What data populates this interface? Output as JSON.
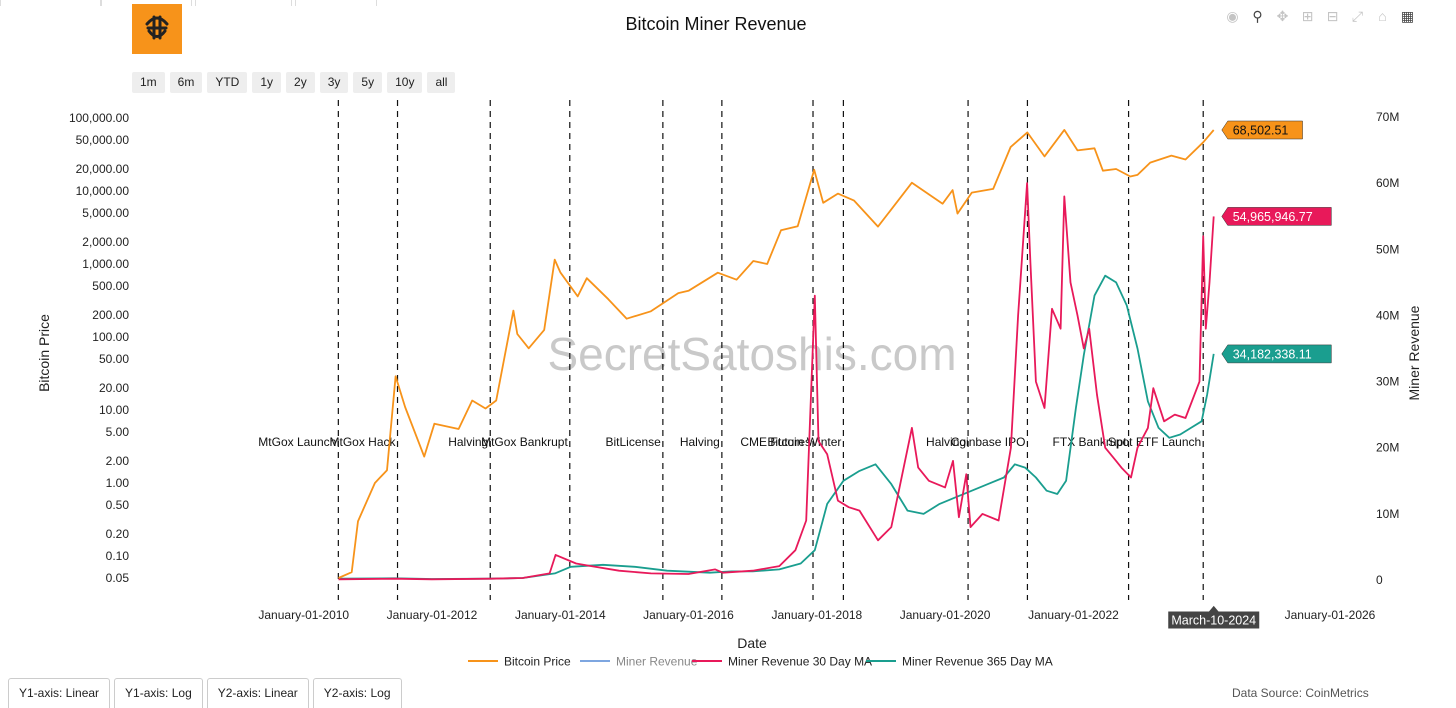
{
  "title": "Bitcoin Miner Revenue",
  "watermark": "SecretSatoshis.com",
  "data_source": "Data Source: CoinMetrics",
  "range_buttons": [
    "1m",
    "6m",
    "YTD",
    "1y",
    "2y",
    "3y",
    "5y",
    "10y",
    "all"
  ],
  "axis_buttons": [
    "Y1-axis: Linear",
    "Y1-axis: Log",
    "Y2-axis: Linear",
    "Y2-axis: Log"
  ],
  "modebar_icons": [
    "camera-icon",
    "zoom-icon",
    "pan-icon",
    "zoom-in-icon",
    "zoom-out-icon",
    "autoscale-icon",
    "reset-axes-icon",
    "plotly-logo-icon"
  ],
  "colors": {
    "price": "#f7931a",
    "revenue": "#7ea6e0",
    "ma30": "#e8195a",
    "ma365": "#1a9e8f"
  },
  "chart_data": {
    "type": "line",
    "xlabel": "Date",
    "ylabel": "Bitcoin Price",
    "y2label": "Miner Revenue",
    "xlim": [
      "2009-01-03",
      "2026-01-01"
    ],
    "x_ticks": [
      "January-01-2010",
      "January-01-2012",
      "January-01-2014",
      "January-01-2016",
      "January-01-2018",
      "January-01-2020",
      "January-01-2022",
      "January-01-2026"
    ],
    "y_scale": "log",
    "y_ticks": [
      "100,000.00",
      "50,000.00",
      "20,000.00",
      "10,000.00",
      "5,000.00",
      "2,000.00",
      "1,000.00",
      "500.00",
      "200.00",
      "100.00",
      "50.00",
      "20.00",
      "10.00",
      "5.00",
      "2.00",
      "1.00",
      "0.50",
      "0.20",
      "0.10",
      "0.05"
    ],
    "y2_ticks": [
      "70M",
      "60M",
      "50M",
      "40M",
      "30M",
      "20M",
      "10M",
      "0"
    ],
    "y2_range": [
      0,
      70000000
    ],
    "hover_date": "March-10-2024",
    "last_values": {
      "price": "68,502.51",
      "ma30": "54,965,946.77",
      "ma365": "34,182,338.11"
    },
    "events": [
      {
        "date": "2010-07-17",
        "label": "MtGox Launch"
      },
      {
        "date": "2011-06-19",
        "label": "MtGox Hack"
      },
      {
        "date": "2012-11-28",
        "label": "Halving"
      },
      {
        "date": "2014-02-24",
        "label": "MtGox Bankrupt"
      },
      {
        "date": "2015-08-08",
        "label": "BitLicense"
      },
      {
        "date": "2016-07-09",
        "label": "Halving"
      },
      {
        "date": "2017-12-10",
        "label": "CME Futures"
      },
      {
        "date": "2018-06-01",
        "label": "Bitcoin Winter"
      },
      {
        "date": "2020-05-11",
        "label": "Halving"
      },
      {
        "date": "2021-04-14",
        "label": "Coinbase IPO"
      },
      {
        "date": "2022-11-11",
        "label": "FTX Bankrupt"
      },
      {
        "date": "2024-01-10",
        "label": "Spot ETF Launch"
      }
    ],
    "series": [
      {
        "name": "Bitcoin Price",
        "axis": "y",
        "x": [
          "2010-07-18",
          "2010-10-01",
          "2010-11-06",
          "2011-02-10",
          "2011-04-20",
          "2011-06-08",
          "2011-08-01",
          "2011-11-18",
          "2012-01-15",
          "2012-06-01",
          "2012-08-17",
          "2012-11-01",
          "2013-01-01",
          "2013-04-09",
          "2013-05-01",
          "2013-07-05",
          "2013-10-01",
          "2013-11-30",
          "2014-01-01",
          "2014-04-10",
          "2014-06-01",
          "2014-10-01",
          "2015-01-14",
          "2015-06-01",
          "2015-11-04",
          "2016-01-01",
          "2016-06-16",
          "2016-10-01",
          "2017-01-04",
          "2017-03-24",
          "2017-06-11",
          "2017-09-14",
          "2017-12-17",
          "2018-02-06",
          "2018-05-01",
          "2018-08-01",
          "2018-12-15",
          "2019-06-26",
          "2019-12-18",
          "2020-02-13",
          "2020-03-12",
          "2020-06-01",
          "2020-10-01",
          "2021-01-08",
          "2021-04-13",
          "2021-07-20",
          "2021-11-10",
          "2022-01-24",
          "2022-05-01",
          "2022-06-18",
          "2022-09-01",
          "2022-11-21",
          "2023-01-01",
          "2023-03-14",
          "2023-07-13",
          "2023-10-01",
          "2024-01-10",
          "2024-03-10"
        ],
        "values": [
          0.05,
          0.06,
          0.3,
          1.0,
          1.5,
          29.0,
          11.0,
          2.3,
          6.5,
          5.5,
          13.5,
          10.5,
          13.5,
          230,
          110,
          70,
          125,
          1150,
          770,
          360,
          640,
          330,
          178,
          225,
          400,
          430,
          760,
          610,
          1100,
          1000,
          2900,
          3300,
          19500,
          6900,
          9200,
          7400,
          3250,
          13000,
          6700,
          10300,
          4900,
          9500,
          10700,
          40000,
          63500,
          29800,
          68700,
          36000,
          38500,
          19000,
          20000,
          15800,
          16600,
          24500,
          30500,
          27000,
          46500,
          68502.51
        ]
      },
      {
        "name": "Miner Revenue",
        "axis": "y2",
        "x": [],
        "values": []
      },
      {
        "name": "Miner Revenue 30 Day MA",
        "axis": "y2",
        "x": [
          "2010-07-18",
          "2011-06-01",
          "2012-01-01",
          "2012-11-28",
          "2013-06-01",
          "2013-11-01",
          "2013-12-05",
          "2014-04-01",
          "2014-06-01",
          "2014-12-01",
          "2015-06-01",
          "2016-01-01",
          "2016-06-01",
          "2016-07-15",
          "2017-01-01",
          "2017-06-01",
          "2017-09-01",
          "2017-11-01",
          "2017-12-20",
          "2018-01-10",
          "2018-03-01",
          "2018-05-01",
          "2018-07-01",
          "2018-09-01",
          "2018-12-15",
          "2019-03-01",
          "2019-06-26",
          "2019-08-01",
          "2019-10-01",
          "2020-01-01",
          "2020-02-15",
          "2020-03-20",
          "2020-05-01",
          "2020-05-25",
          "2020-08-01",
          "2020-11-01",
          "2021-01-10",
          "2021-02-20",
          "2021-04-12",
          "2021-05-01",
          "2021-06-01",
          "2021-07-20",
          "2021-09-01",
          "2021-10-20",
          "2021-11-10",
          "2021-12-15",
          "2022-01-24",
          "2022-03-01",
          "2022-04-01",
          "2022-05-15",
          "2022-07-01",
          "2022-09-01",
          "2022-10-01",
          "2022-11-25",
          "2023-01-01",
          "2023-03-01",
          "2023-04-01",
          "2023-06-01",
          "2023-08-01",
          "2023-10-01",
          "2023-12-20",
          "2024-01-10",
          "2024-01-25",
          "2024-02-15",
          "2024-03-10"
        ],
        "values": [
          0.1,
          0.2,
          0.1,
          0.2,
          0.3,
          1.0,
          3.8,
          2.5,
          2.2,
          1.4,
          1.0,
          0.9,
          1.6,
          1.1,
          1.4,
          2.1,
          4.5,
          9.0,
          43.0,
          21.0,
          19.0,
          12.0,
          11.0,
          10.5,
          6.0,
          8.0,
          23.0,
          17.0,
          15.0,
          14.0,
          18.0,
          9.5,
          16.0,
          8.0,
          10.0,
          9.0,
          20.0,
          40.0,
          60.0,
          48.0,
          30.0,
          26.0,
          41.0,
          38.0,
          58.0,
          45.0,
          40.0,
          35.0,
          38.0,
          28.0,
          20.0,
          18.0,
          17.0,
          15.5,
          20.0,
          23.0,
          29.0,
          24.0,
          25.0,
          24.5,
          30.0,
          52.0,
          38.0,
          45.0,
          54.97
        ]
      },
      {
        "name": "Miner Revenue 365 Day MA",
        "axis": "y2",
        "x": [
          "2010-07-18",
          "2011-06-01",
          "2012-01-01",
          "2012-11-28",
          "2013-06-01",
          "2013-12-01",
          "2014-03-01",
          "2014-09-01",
          "2015-03-01",
          "2015-09-01",
          "2016-05-01",
          "2016-09-01",
          "2017-01-01",
          "2017-06-01",
          "2017-10-01",
          "2017-12-20",
          "2018-03-01",
          "2018-06-01",
          "2018-09-01",
          "2018-12-01",
          "2019-03-01",
          "2019-06-01",
          "2019-09-01",
          "2019-12-01",
          "2020-03-01",
          "2020-06-01",
          "2020-09-01",
          "2020-12-01",
          "2021-02-01",
          "2021-04-01",
          "2021-06-01",
          "2021-08-01",
          "2021-10-01",
          "2021-11-20",
          "2022-01-15",
          "2022-03-01",
          "2022-05-01",
          "2022-07-01",
          "2022-09-01",
          "2022-11-01",
          "2023-01-01",
          "2023-03-01",
          "2023-05-01",
          "2023-07-01",
          "2023-09-01",
          "2023-11-01",
          "2024-01-01",
          "2024-02-01",
          "2024-03-10"
        ],
        "values": [
          0.2,
          0.25,
          0.15,
          0.2,
          0.3,
          1.0,
          2.0,
          2.3,
          2.0,
          1.4,
          1.1,
          1.3,
          1.3,
          1.6,
          2.5,
          4.5,
          11.5,
          15.0,
          16.5,
          17.5,
          14.5,
          10.5,
          10.0,
          11.5,
          12.5,
          13.5,
          14.5,
          15.5,
          17.5,
          17.0,
          15.5,
          13.5,
          13.0,
          15.0,
          26.0,
          34.0,
          43.0,
          46.0,
          45.0,
          41.5,
          35.0,
          27.0,
          23.0,
          21.5,
          22.0,
          23.0,
          24.0,
          28.0,
          34.18
        ]
      }
    ]
  }
}
